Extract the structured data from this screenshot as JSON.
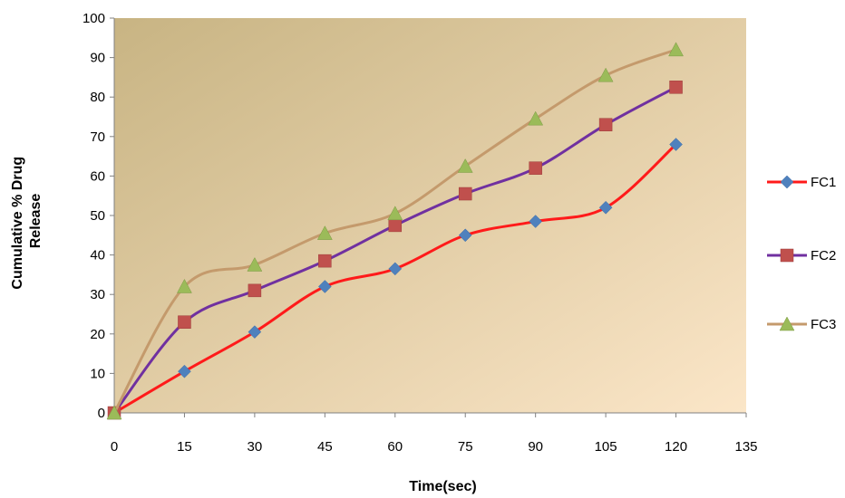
{
  "chart_data": {
    "type": "line",
    "xlabel": "Time(sec)",
    "ylabel": [
      "Cumulative % Drug",
      "Release"
    ],
    "xlim": [
      0,
      135
    ],
    "ylim": [
      0,
      100
    ],
    "x_ticks": [
      0,
      15,
      30,
      45,
      60,
      75,
      90,
      105,
      120,
      135
    ],
    "y_ticks": [
      0,
      10,
      20,
      30,
      40,
      50,
      60,
      70,
      80,
      90,
      100
    ],
    "grid": false,
    "legend_position": "right",
    "x": [
      0,
      15,
      30,
      45,
      60,
      75,
      90,
      105,
      120
    ],
    "series": [
      {
        "name": "FC1",
        "values": [
          0,
          10.5,
          20.5,
          32,
          36.5,
          45,
          48.5,
          52,
          68
        ],
        "line_color": "#ff1a1a",
        "marker_color": "#4f81bd",
        "marker": "diamond"
      },
      {
        "name": "FC2",
        "values": [
          0,
          23,
          31,
          38.5,
          47.5,
          55.5,
          62,
          73,
          82.5
        ],
        "line_color": "#7030a0",
        "marker_color": "#c0504d",
        "marker": "square"
      },
      {
        "name": "FC3",
        "values": [
          0,
          32,
          37.5,
          45.5,
          50.5,
          62.5,
          74.5,
          85.5,
          92
        ],
        "line_color": "#c49a6c",
        "marker_color": "#9bbb59",
        "marker": "triangle"
      }
    ],
    "plot_background": [
      "#c8b483",
      "#fbe6c8"
    ]
  }
}
